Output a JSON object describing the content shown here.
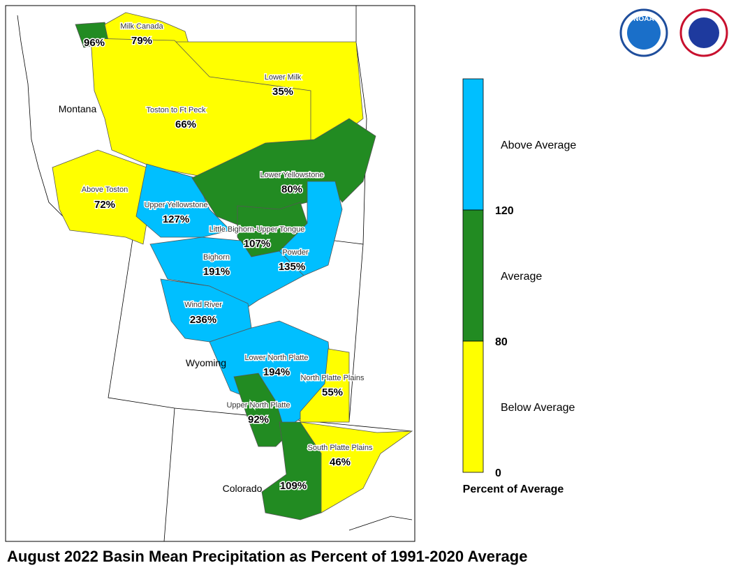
{
  "title": "August 2022 Basin Mean Precipitation as Percent of 1991-2020 Average",
  "logos": [
    "NOAA"
  ],
  "states": [
    "Montana",
    "Wyoming",
    "Colorado"
  ],
  "basins": [
    {
      "value": "96%",
      "color": "#228b22"
    },
    {
      "name": "Milk Canada",
      "value": "79%",
      "color": "#ffff00"
    },
    {
      "name": "Lower Milk",
      "value": "35%",
      "color": "#ffff00"
    },
    {
      "name": "Toston to Ft Peck",
      "value": "66%",
      "color": "#ffff00"
    },
    {
      "name": "Above Toston",
      "value": "72%",
      "color": "#ffff00"
    },
    {
      "name": "Upper Yellowstone",
      "value": "127%",
      "color": "#00bfff"
    },
    {
      "name": "Lower Yellowstone",
      "value": "80%",
      "color": "#228b22"
    },
    {
      "name": "Little Bighorn-Upper Tongue",
      "value": "107%",
      "color": "#228b22"
    },
    {
      "name": "Powder",
      "value": "135%",
      "color": "#00bfff"
    },
    {
      "name": "Bighorn",
      "value": "191%",
      "color": "#00bfff"
    },
    {
      "name": "Wind River",
      "value": "236%",
      "color": "#00bfff"
    },
    {
      "name": "Lower North Platte",
      "value": "194%",
      "color": "#00bfff"
    },
    {
      "name": "North Platte Plains",
      "value": "55%",
      "color": "#ffff00"
    },
    {
      "name": "Upper North Platte",
      "value": "92%",
      "color": "#228b22"
    },
    {
      "name": "South Platte Plains",
      "value": "46%",
      "color": "#ffff00"
    },
    {
      "value": "109%",
      "color": "#228b22"
    }
  ],
  "legend": {
    "title": "Percent of Average",
    "items": [
      {
        "label": "Above Average",
        "color": "#00bfff"
      },
      {
        "label": "Average",
        "color": "#228b22"
      },
      {
        "label": "Below Average",
        "color": "#ffff00"
      }
    ],
    "ticks": [
      "120",
      "80",
      "0"
    ]
  }
}
